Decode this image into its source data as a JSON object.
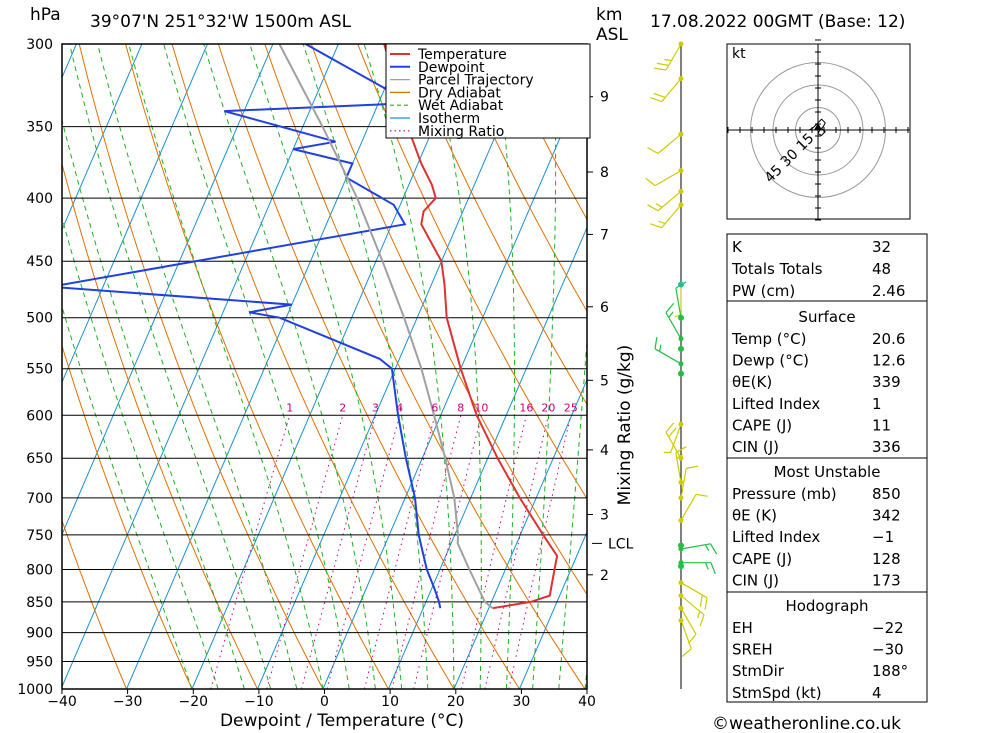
{
  "header": {
    "unit_hpa": "hPa",
    "location": "39°07'N  251°32'W  1500m  ASL",
    "unit_km": "km",
    "unit_asl": "ASL",
    "datetime": "17.08.2022  00GMT  (Base: 12)"
  },
  "footer": {
    "copyright": "©weatheronline.co.uk"
  },
  "colors": {
    "temperature": "#e03030",
    "dewpoint": "#2040e0",
    "parcel": "#a0a0a0",
    "dry_adiabat": "#e07000",
    "wet_adiabat": "#20b020",
    "isotherm": "#1a90d0",
    "mixing_ratio": "#cc0077",
    "wind_barb": "#cccc00",
    "wind_barb_alt": "#20c040"
  },
  "chart_data": [
    {
      "type": "skew-t",
      "xlabel": "Dewpoint / Temperature (°C)",
      "ylabel": "hPa",
      "right_axis_label": "Mixing Ratio (g/kg)",
      "x_ticks": [
        -40,
        -30,
        -20,
        -10,
        0,
        10,
        20,
        30,
        40
      ],
      "x_tick_labels": [
        "−40",
        "−30",
        "−20",
        "−10",
        "0",
        "10",
        "20",
        "30",
        "40"
      ],
      "pressure_levels": [
        300,
        350,
        400,
        450,
        500,
        550,
        600,
        650,
        700,
        750,
        800,
        850,
        900,
        950,
        1000
      ],
      "km_ticks": [
        {
          "label": "9",
          "pressure": 331
        },
        {
          "label": "8",
          "pressure": 381
        },
        {
          "label": "7",
          "pressure": 428
        },
        {
          "label": "6",
          "pressure": 490
        },
        {
          "label": "5",
          "pressure": 562
        },
        {
          "label": "4",
          "pressure": 640
        },
        {
          "label": "3",
          "pressure": 722
        },
        {
          "label": "2",
          "pressure": 808
        }
      ],
      "lcl": {
        "label": "LCL",
        "pressure": 762
      },
      "mixing_ratio_labels": [
        "1",
        "2",
        "3",
        "4",
        "6",
        "8",
        "10",
        "16",
        "20",
        "25"
      ],
      "mixing_ratio_values": [
        1,
        2,
        3,
        4,
        6,
        8,
        10,
        16,
        20,
        25
      ],
      "legend": [
        "Temperature",
        "Dewpoint",
        "Parcel Trajectory",
        "Dry Adiabat",
        "Wet Adiabat",
        "Isotherm",
        "Mixing Ratio"
      ],
      "legend_position": "top",
      "series": [
        {
          "name": "Temperature",
          "points": [
            [
              860,
              20.6
            ],
            [
              850,
              26
            ],
            [
              840,
              28.5
            ],
            [
              820,
              28.0
            ],
            [
              800,
              27.5
            ],
            [
              780,
              27.0
            ],
            [
              750,
              23.5
            ],
            [
              700,
              17.5
            ],
            [
              650,
              11.5
            ],
            [
              600,
              5.5
            ],
            [
              550,
              0.0
            ],
            [
              500,
              -5.5
            ],
            [
              470,
              -8.0
            ],
            [
              450,
              -10.0
            ],
            [
              420,
              -15.5
            ],
            [
              410,
              -16.0
            ],
            [
              400,
              -15.0
            ],
            [
              390,
              -16.5
            ],
            [
              375,
              -19.5
            ],
            [
              350,
              -24.0
            ],
            [
              300,
              -33.0
            ]
          ]
        },
        {
          "name": "Dewpoint",
          "points": [
            [
              860,
              12.6
            ],
            [
              850,
              12.0
            ],
            [
              830,
              10.5
            ],
            [
              800,
              8.0
            ],
            [
              750,
              4.5
            ],
            [
              700,
              1.5
            ],
            [
              650,
              -2.5
            ],
            [
              600,
              -6.5
            ],
            [
              550,
              -10.5
            ],
            [
              540,
              -13.0
            ],
            [
              500,
              -31.0
            ],
            [
              495,
              -36.0
            ],
            [
              488,
              -30.0
            ],
            [
              472,
              -68.0
            ],
            [
              420,
              -18.0
            ],
            [
              405,
              -21.0
            ],
            [
              385,
              -30.0
            ],
            [
              375,
              -30.0
            ],
            [
              365,
              -40.0
            ],
            [
              360,
              -34.0
            ],
            [
              340,
              -53.0
            ],
            [
              335,
              -25.0
            ],
            [
              300,
              -45.0
            ]
          ]
        },
        {
          "name": "Parcel Trajectory",
          "points": [
            [
              860,
              20.6
            ],
            [
              850,
              19.0
            ],
            [
              800,
              14.5
            ],
            [
              762,
              11.0
            ],
            [
              750,
              10.5
            ],
            [
              700,
              7.5
            ],
            [
              650,
              3.5
            ],
            [
              600,
              -1.0
            ],
            [
              550,
              -6.0
            ],
            [
              500,
              -12.0
            ],
            [
              450,
              -19.0
            ],
            [
              400,
              -27.0
            ],
            [
              350,
              -37.0
            ],
            [
              300,
              -49.0
            ]
          ]
        }
      ],
      "wind_profile": [
        {
          "pressure": 300,
          "dir": 210,
          "kt": 25
        },
        {
          "pressure": 320,
          "dir": 220,
          "kt": 20
        },
        {
          "pressure": 355,
          "dir": 230,
          "kt": 10
        },
        {
          "pressure": 380,
          "dir": 240,
          "kt": 10
        },
        {
          "pressure": 395,
          "dir": 230,
          "kt": 15
        },
        {
          "pressure": 405,
          "dir": 220,
          "kt": 15
        },
        {
          "pressure": 470,
          "dir": 180,
          "kt": 5
        },
        {
          "pressure": 500,
          "dir": 350,
          "kt": 10
        },
        {
          "pressure": 520,
          "dir": 330,
          "kt": 15
        },
        {
          "pressure": 545,
          "dir": 300,
          "kt": 15
        },
        {
          "pressure": 610,
          "dir": 200,
          "kt": 5
        },
        {
          "pressure": 650,
          "dir": 330,
          "kt": 20
        },
        {
          "pressure": 680,
          "dir": 350,
          "kt": 15
        },
        {
          "pressure": 700,
          "dir": 10,
          "kt": 10
        },
        {
          "pressure": 730,
          "dir": 30,
          "kt": 10
        },
        {
          "pressure": 770,
          "dir": 80,
          "kt": 15
        },
        {
          "pressure": 790,
          "dir": 90,
          "kt": 15
        },
        {
          "pressure": 820,
          "dir": 120,
          "kt": 20
        },
        {
          "pressure": 840,
          "dir": 130,
          "kt": 15
        },
        {
          "pressure": 860,
          "dir": 150,
          "kt": 10
        },
        {
          "pressure": 880,
          "dir": 160,
          "kt": 10
        }
      ],
      "wind_markers": [
        {
          "pressure": 470,
          "color": "#20c0a0"
        },
        {
          "pressure": 500,
          "color": "#20c040"
        },
        {
          "pressure": 530,
          "color": "#20c040"
        },
        {
          "pressure": 555,
          "color": "#20c040"
        },
        {
          "pressure": 765,
          "color": "#20c040"
        },
        {
          "pressure": 795,
          "color": "#20c040"
        }
      ]
    },
    {
      "type": "hodograph",
      "unit_label": "kt",
      "ring_labels": [
        "15",
        "30",
        "45"
      ],
      "ring_values": [
        15,
        30,
        45
      ],
      "trace_uv": [
        [
          -5,
          0
        ],
        [
          -3,
          1
        ],
        [
          -1,
          3
        ],
        [
          1,
          5
        ],
        [
          2,
          6
        ],
        [
          4,
          4
        ],
        [
          3,
          2
        ],
        [
          2,
          1
        ],
        [
          4,
          -1
        ],
        [
          2,
          -3
        ],
        [
          0,
          -2
        ],
        [
          1,
          0
        ],
        [
          0,
          1
        ]
      ],
      "storm_motion_uv": [
        0,
        4
      ]
    }
  ],
  "table": {
    "indices": [
      {
        "label": "K",
        "value": "32"
      },
      {
        "label": "Totals Totals",
        "value": "48"
      },
      {
        "label": "PW (cm)",
        "value": "2.46"
      }
    ],
    "surface": {
      "title": "Surface",
      "rows": [
        {
          "label": "Temp (°C)",
          "value": "20.6"
        },
        {
          "label": "Dewp (°C)",
          "value": "12.6"
        },
        {
          "label": "θE(K)",
          "value": "339"
        },
        {
          "label": "Lifted Index",
          "value": "1"
        },
        {
          "label": "CAPE (J)",
          "value": "11"
        },
        {
          "label": "CIN (J)",
          "value": "336"
        }
      ]
    },
    "most_unstable": {
      "title": "Most Unstable",
      "rows": [
        {
          "label": "Pressure (mb)",
          "value": "850"
        },
        {
          "label": "θE (K)",
          "value": "342"
        },
        {
          "label": "Lifted Index",
          "value": "−1"
        },
        {
          "label": "CAPE (J)",
          "value": "128"
        },
        {
          "label": "CIN (J)",
          "value": "173"
        }
      ]
    },
    "hodograph": {
      "title": "Hodograph",
      "rows": [
        {
          "label": "EH",
          "value": "−22"
        },
        {
          "label": "SREH",
          "value": "−30"
        },
        {
          "label": "StmDir",
          "value": "188°"
        },
        {
          "label": "StmSpd (kt)",
          "value": "4"
        }
      ]
    }
  }
}
